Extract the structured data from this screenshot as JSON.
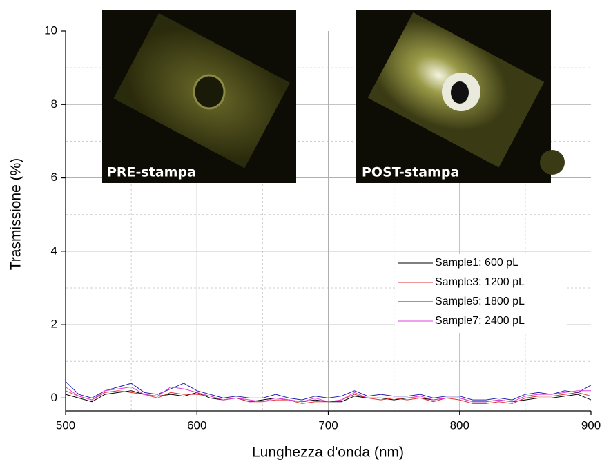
{
  "chart_data": {
    "type": "line",
    "xlabel": "Lunghezza d'onda (nm)",
    "ylabel": "Trasmissione (%)",
    "annotations": [
      "PRE-stampa",
      "POST-stampa"
    ],
    "x": [
      500,
      510,
      520,
      530,
      540,
      550,
      560,
      570,
      580,
      590,
      600,
      610,
      620,
      630,
      640,
      650,
      660,
      670,
      680,
      690,
      700,
      710,
      720,
      730,
      740,
      750,
      760,
      770,
      780,
      790,
      800,
      810,
      820,
      830,
      840,
      850,
      860,
      870,
      880,
      890,
      900
    ],
    "series": [
      {
        "name": "Sample1: 600 pL",
        "color": "#000000",
        "values": [
          0.1,
          0.0,
          -0.1,
          0.1,
          0.15,
          0.2,
          0.1,
          0.05,
          0.1,
          0.05,
          0.15,
          0.0,
          -0.05,
          0.0,
          -0.1,
          -0.05,
          0.0,
          -0.05,
          -0.1,
          -0.05,
          -0.1,
          -0.1,
          0.05,
          0.0,
          0.0,
          -0.05,
          0.0,
          0.0,
          -0.05,
          0.0,
          0.0,
          -0.1,
          -0.1,
          -0.05,
          -0.1,
          -0.05,
          0.0,
          0.0,
          0.05,
          0.1,
          -0.05
        ]
      },
      {
        "name": "Sample3: 1200 pL",
        "color": "#e03030",
        "values": [
          0.2,
          0.05,
          -0.05,
          0.15,
          0.2,
          0.15,
          0.1,
          0.0,
          0.15,
          0.1,
          0.1,
          0.05,
          -0.05,
          0.0,
          -0.1,
          -0.1,
          -0.05,
          -0.05,
          -0.15,
          -0.1,
          -0.1,
          -0.05,
          0.1,
          0.0,
          -0.05,
          0.0,
          -0.05,
          0.0,
          -0.1,
          0.0,
          -0.05,
          -0.15,
          -0.15,
          -0.1,
          -0.15,
          0.0,
          0.05,
          0.05,
          0.1,
          0.15,
          0.05
        ]
      },
      {
        "name": "Sample5: 1800 pL",
        "color": "#2020b0",
        "values": [
          0.45,
          0.1,
          0.0,
          0.2,
          0.3,
          0.4,
          0.15,
          0.1,
          0.25,
          0.4,
          0.2,
          0.1,
          0.0,
          0.05,
          0.0,
          0.0,
          0.1,
          0.0,
          -0.05,
          0.05,
          0.0,
          0.05,
          0.2,
          0.05,
          0.1,
          0.05,
          0.05,
          0.1,
          0.0,
          0.05,
          0.05,
          -0.05,
          -0.05,
          0.0,
          -0.05,
          0.1,
          0.15,
          0.1,
          0.2,
          0.15,
          0.35
        ]
      },
      {
        "name": "Sample7: 2400 pL",
        "color": "#e040e0",
        "values": [
          0.3,
          0.05,
          -0.05,
          0.2,
          0.25,
          0.3,
          0.1,
          0.05,
          0.3,
          0.25,
          0.15,
          0.05,
          -0.05,
          0.0,
          -0.05,
          -0.1,
          0.0,
          -0.05,
          -0.1,
          0.0,
          -0.1,
          -0.05,
          0.15,
          0.0,
          0.0,
          0.0,
          0.0,
          0.05,
          -0.05,
          0.0,
          0.0,
          -0.1,
          -0.1,
          -0.05,
          -0.1,
          0.05,
          0.1,
          0.1,
          0.15,
          0.2,
          0.2
        ]
      }
    ],
    "xlim": [
      500,
      900
    ],
    "ylim": [
      -0.35,
      10
    ],
    "xticks": [
      500,
      600,
      700,
      800,
      900
    ],
    "yticks": [
      0,
      2,
      4,
      6,
      8,
      10
    ],
    "xminor": [
      550,
      650,
      750,
      850
    ],
    "yminor": [
      1,
      3,
      5,
      7,
      9
    ],
    "grid": true,
    "legend": "lower right"
  }
}
